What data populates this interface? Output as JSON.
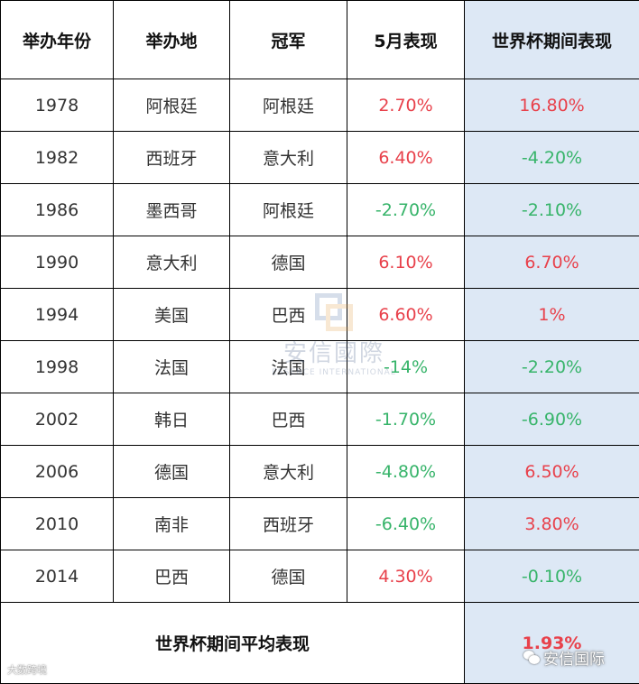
{
  "table": {
    "headers": [
      "举办年份",
      "举办地",
      "冠军",
      "5月表现",
      "世界杯期间表现"
    ],
    "rows": [
      {
        "year": "1978",
        "host": "阿根廷",
        "champion": "阿根廷",
        "may": "2.70%",
        "may_sign": "pos",
        "wc": "16.80%",
        "wc_sign": "pos"
      },
      {
        "year": "1982",
        "host": "西班牙",
        "champion": "意大利",
        "may": "6.40%",
        "may_sign": "pos",
        "wc": "-4.20%",
        "wc_sign": "neg"
      },
      {
        "year": "1986",
        "host": "墨西哥",
        "champion": "阿根廷",
        "may": "-2.70%",
        "may_sign": "neg",
        "wc": "-2.10%",
        "wc_sign": "neg"
      },
      {
        "year": "1990",
        "host": "意大利",
        "champion": "德国",
        "may": "6.10%",
        "may_sign": "pos",
        "wc": "6.70%",
        "wc_sign": "pos"
      },
      {
        "year": "1994",
        "host": "美国",
        "champion": "巴西",
        "may": "6.60%",
        "may_sign": "pos",
        "wc": "1%",
        "wc_sign": "pos"
      },
      {
        "year": "1998",
        "host": "法国",
        "champion": "法国",
        "may": "-14%",
        "may_sign": "neg",
        "wc": "-2.20%",
        "wc_sign": "neg"
      },
      {
        "year": "2002",
        "host": "韩日",
        "champion": "巴西",
        "may": "-1.70%",
        "may_sign": "neg",
        "wc": "-6.90%",
        "wc_sign": "neg"
      },
      {
        "year": "2006",
        "host": "德国",
        "champion": "意大利",
        "may": "-4.80%",
        "may_sign": "neg",
        "wc": "6.50%",
        "wc_sign": "pos"
      },
      {
        "year": "2010",
        "host": "南非",
        "champion": "西班牙",
        "may": "-6.40%",
        "may_sign": "neg",
        "wc": "3.80%",
        "wc_sign": "pos"
      },
      {
        "year": "2014",
        "host": "巴西",
        "champion": "德国",
        "may": "4.30%",
        "may_sign": "pos",
        "wc": "-0.10%",
        "wc_sign": "neg"
      }
    ],
    "average_label": "世界杯期间平均表现",
    "average_value": "1.93%"
  },
  "watermark": {
    "cn": "安信國際",
    "en": "ESSENCE INTERNATIONAL"
  },
  "source_left": "大数跨境",
  "source_right": "安信国际",
  "colors": {
    "positive": "#e8414b",
    "negative": "#37b46a",
    "highlight_column": "#dde8f5"
  },
  "icons": [
    "wechat-icon",
    "essence-logo-icon"
  ]
}
